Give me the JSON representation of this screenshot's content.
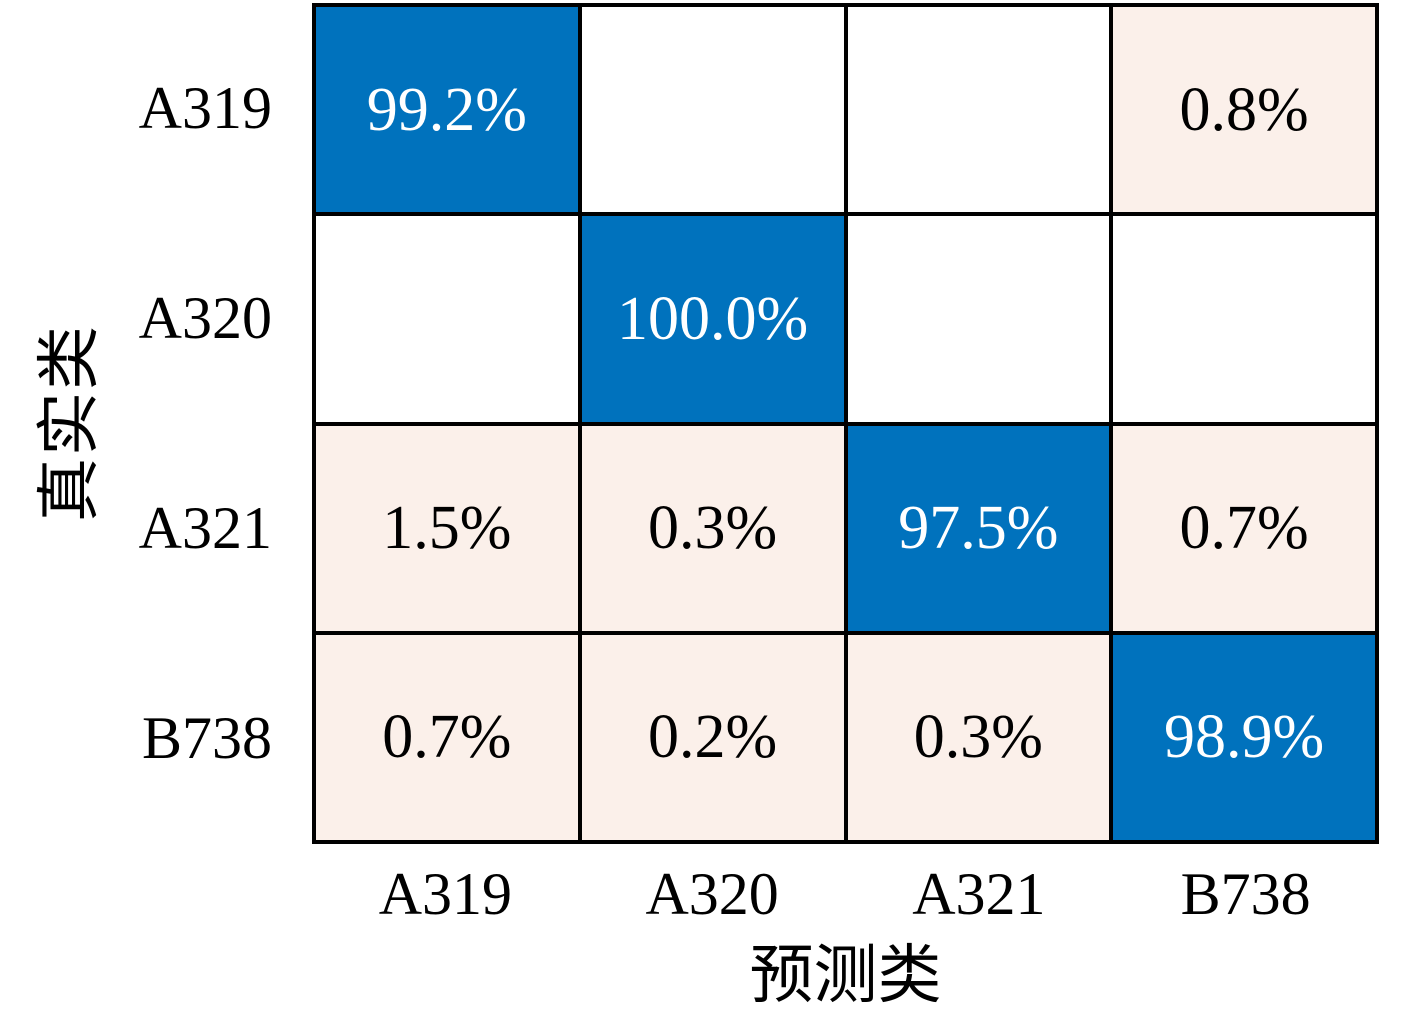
{
  "chart_data": {
    "type": "heatmap",
    "chart_kind": "confusion-matrix",
    "xlabel": "预测类",
    "ylabel": "真实类",
    "x_categories": [
      "A319",
      "A320",
      "A321",
      "B738"
    ],
    "y_categories": [
      "A319",
      "A320",
      "A321",
      "B738"
    ],
    "cell_text": [
      [
        "99.2%",
        "",
        "",
        "0.8%"
      ],
      [
        "",
        "100.0%",
        "",
        ""
      ],
      [
        "1.5%",
        "0.3%",
        "97.5%",
        "0.7%"
      ],
      [
        "0.7%",
        "0.2%",
        "0.3%",
        "98.9%"
      ]
    ],
    "values_percent": [
      [
        99.2,
        0,
        0,
        0.8
      ],
      [
        0,
        100.0,
        0,
        0
      ],
      [
        1.5,
        0.3,
        97.5,
        0.7
      ],
      [
        0.7,
        0.2,
        0.3,
        98.9
      ]
    ],
    "legend": "none",
    "grid": "on",
    "colors": {
      "diagonal_fill": "#0072BD",
      "offdiagonal_fill": "#FBF0EA",
      "zero_fill": "#FFFFFF",
      "diagonal_text": "#FFFFFF",
      "offdiagonal_text": "#000000",
      "grid_line": "#000000",
      "background": "#FFFFFF"
    }
  }
}
